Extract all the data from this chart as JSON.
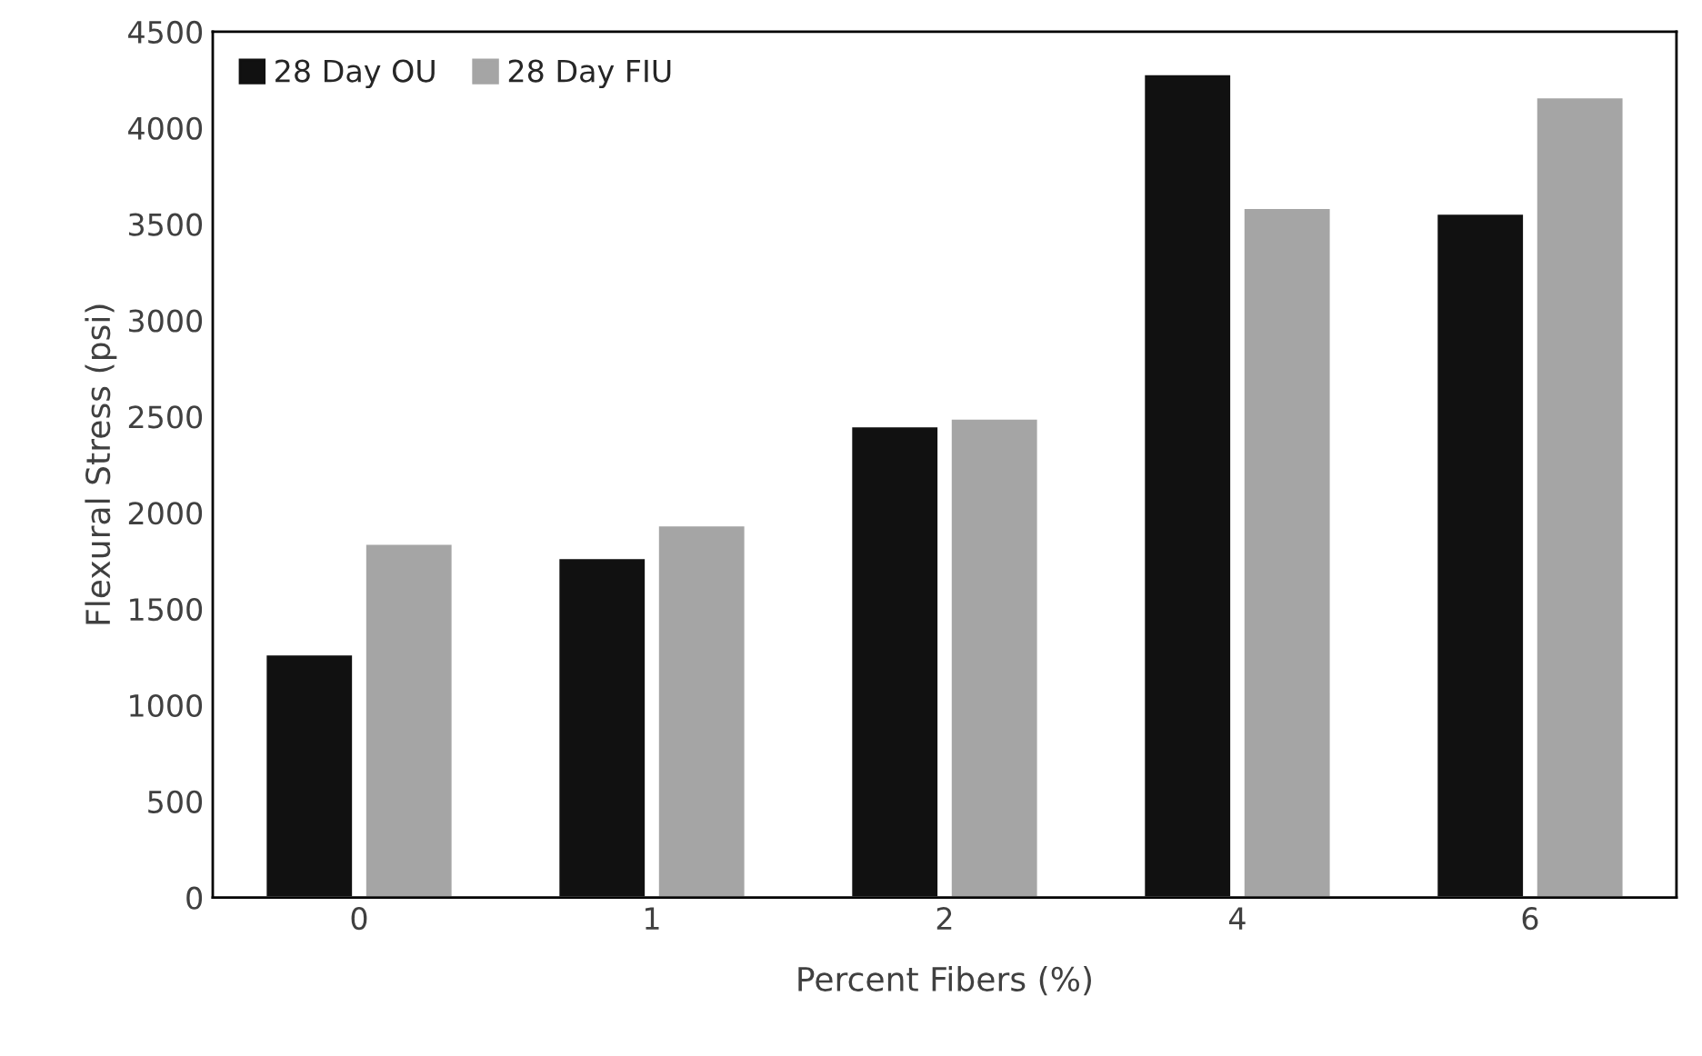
{
  "chart_data": {
    "type": "bar",
    "xlabel": "Percent Fibers (%)",
    "ylabel": "Flexural Stress (psi)",
    "categories": [
      "0",
      "1",
      "2",
      "4",
      "6"
    ],
    "series": [
      {
        "name": "28 Day OU",
        "color": "#111111",
        "values": [
          1265,
          1765,
          2450,
          4280,
          3555
        ]
      },
      {
        "name": "28 Day FIU",
        "color": "#a5a5a5",
        "values": [
          1840,
          1935,
          2490,
          3585,
          4160
        ]
      }
    ],
    "ylim": [
      0,
      4500
    ],
    "yticks": [
      0,
      500,
      1000,
      1500,
      2000,
      2500,
      3000,
      3500,
      4000,
      4500
    ],
    "grid": false,
    "legend": "top left"
  }
}
